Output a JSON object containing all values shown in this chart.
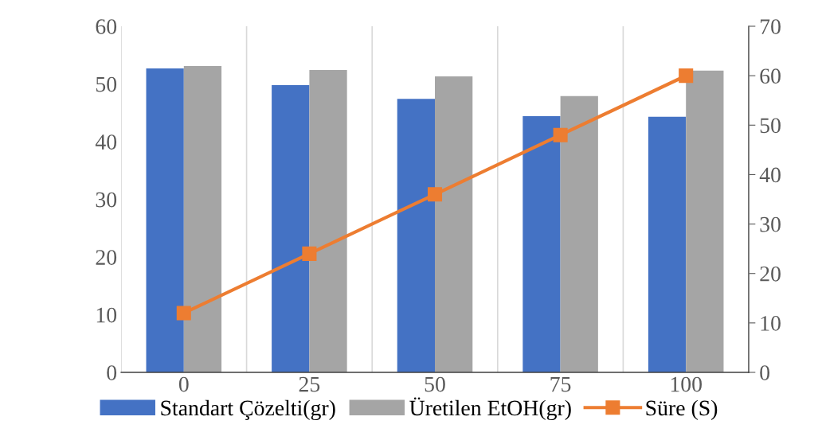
{
  "chart_data": {
    "type": "bar",
    "categories": [
      "0",
      "25",
      "50",
      "75",
      "100"
    ],
    "series": [
      {
        "name": "Standart Çözelti(gr)",
        "color": "#4472c4",
        "values": [
          52.7,
          49.8,
          47.4,
          44.4,
          44.3
        ]
      },
      {
        "name": "Üretilen EtOH(gr)",
        "color": "#a5a5a5",
        "values": [
          53.1,
          52.4,
          51.3,
          47.9,
          52.3
        ]
      },
      {
        "name": "Süre (S)",
        "type": "line",
        "axis": "y2",
        "color": "#ed7d31",
        "marker": "square",
        "values": [
          12,
          24,
          36,
          48,
          60
        ]
      }
    ],
    "ylim": [
      0,
      60
    ],
    "yticks": [
      0,
      10,
      20,
      30,
      40,
      50,
      60
    ],
    "y2lim": [
      0,
      70
    ],
    "y2ticks": [
      0,
      10,
      20,
      30,
      40,
      50,
      60,
      70
    ],
    "grid": "x",
    "legend": "bottom"
  }
}
